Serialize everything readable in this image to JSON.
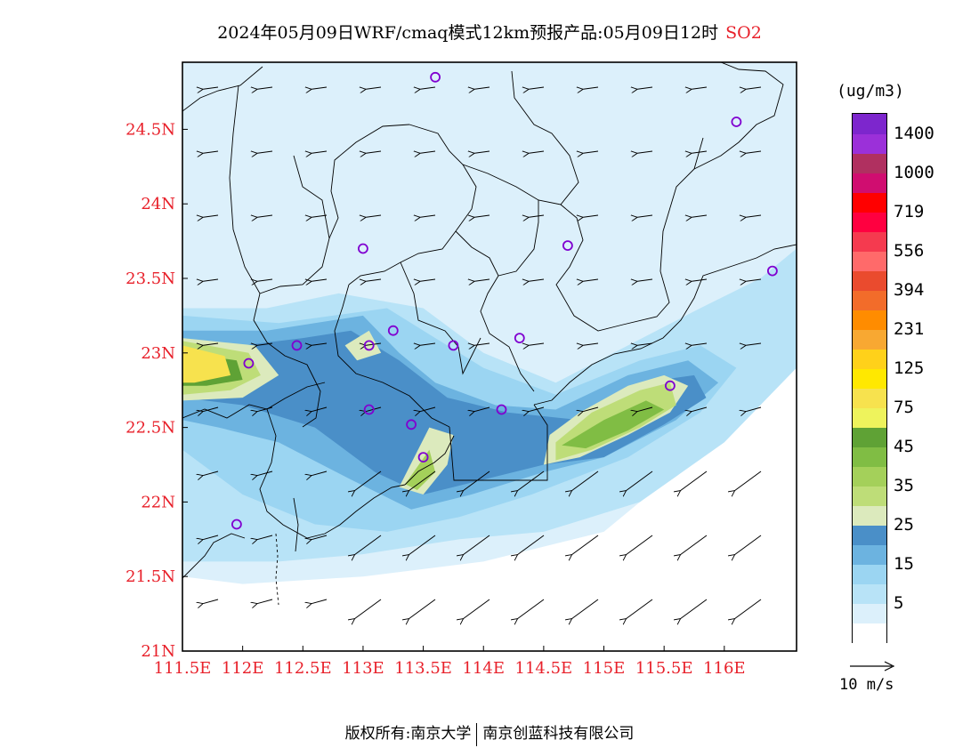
{
  "header": {
    "title": "2024年05月09日WRF/cmaq模式12km预报产品:05月09日12时",
    "pollutant": "SO2"
  },
  "legend": {
    "unit": "(ug/m3)",
    "levels": [
      {
        "label": "",
        "color": "#ffffff"
      },
      {
        "label": "5",
        "color": "#dcf0fb"
      },
      {
        "label": "",
        "color": "#b8e3f7"
      },
      {
        "label": "15",
        "color": "#9bd5f2"
      },
      {
        "label": "",
        "color": "#6cb3e0"
      },
      {
        "label": "25",
        "color": "#4a8fc8"
      },
      {
        "label": "",
        "color": "#dceabd"
      },
      {
        "label": "35",
        "color": "#bedd78"
      },
      {
        "label": "",
        "color": "#a4d05a"
      },
      {
        "label": "45",
        "color": "#80bd44"
      },
      {
        "label": "",
        "color": "#5fa235"
      },
      {
        "label": "75",
        "color": "#eef35c"
      },
      {
        "label": "",
        "color": "#f7e24e"
      },
      {
        "label": "125",
        "color": "#ffe800"
      },
      {
        "label": "",
        "color": "#ffd11a"
      },
      {
        "label": "231",
        "color": "#f8a832"
      },
      {
        "label": "",
        "color": "#ff8c00"
      },
      {
        "label": "394",
        "color": "#f26c2a"
      },
      {
        "label": "",
        "color": "#ea4b2e"
      },
      {
        "label": "556",
        "color": "#ff6a6a"
      },
      {
        "label": "",
        "color": "#f53a4f"
      },
      {
        "label": "719",
        "color": "#ff0040"
      },
      {
        "label": "",
        "color": "#ff0000"
      },
      {
        "label": "1000",
        "color": "#d00d70"
      },
      {
        "label": "",
        "color": "#b03060"
      },
      {
        "label": "1400",
        "color": "#9b30d9"
      },
      {
        "label": "",
        "color": "#7d26cd"
      }
    ]
  },
  "axes": {
    "x_ticks": [
      "111.5E",
      "112E",
      "112.5E",
      "113E",
      "113.5E",
      "114E",
      "114.5E",
      "115E",
      "115.5E",
      "116E"
    ],
    "y_ticks": [
      "21N",
      "21.5N",
      "22N",
      "22.5N",
      "23N",
      "23.5N",
      "24N",
      "24.5N"
    ],
    "lon_range": [
      111.5,
      116.6
    ],
    "lat_range": [
      21.0,
      24.95
    ]
  },
  "vector_key": {
    "label": "10 m/s"
  },
  "footer": {
    "left": "版权所有:南京大学",
    "right": "南京创蓝科技有限公司"
  },
  "colors": {
    "tick_text": "#e8202a",
    "station_marker": "#8000d0",
    "frame": "#000000"
  },
  "field": {
    "bands": [
      {
        "level": 1,
        "pts": [
          [
            111.5,
            24.95
          ],
          [
            111.5,
            21.5
          ],
          [
            112,
            21.45
          ],
          [
            113,
            21.5
          ],
          [
            114,
            21.6
          ],
          [
            115,
            21.8
          ],
          [
            115.6,
            22.2
          ],
          [
            116.1,
            22.6
          ],
          [
            116.6,
            23
          ],
          [
            116.6,
            24.95
          ]
        ]
      },
      {
        "level": 2,
        "pts": [
          [
            111.5,
            23.3
          ],
          [
            112.2,
            23.3
          ],
          [
            112.8,
            23.4
          ],
          [
            113.5,
            23.3
          ],
          [
            114,
            23
          ],
          [
            114.6,
            22.8
          ],
          [
            115.2,
            23.05
          ],
          [
            115.8,
            23.3
          ],
          [
            116.3,
            23.5
          ],
          [
            116.6,
            23.7
          ],
          [
            116.6,
            22.9
          ],
          [
            116,
            22.4
          ],
          [
            115.3,
            22
          ],
          [
            114.5,
            21.8
          ],
          [
            113.8,
            21.75
          ],
          [
            113,
            21.65
          ],
          [
            112.3,
            21.6
          ],
          [
            111.5,
            21.6
          ]
        ]
      },
      {
        "level": 3,
        "pts": [
          [
            111.5,
            23.25
          ],
          [
            112.3,
            23.2
          ],
          [
            113.2,
            23.3
          ],
          [
            113.6,
            23.1
          ],
          [
            114,
            22.9
          ],
          [
            114.6,
            22.72
          ],
          [
            115.3,
            22.95
          ],
          [
            115.8,
            23.05
          ],
          [
            116.1,
            22.9
          ],
          [
            115.8,
            22.6
          ],
          [
            115.2,
            22.3
          ],
          [
            114.4,
            22.05
          ],
          [
            113.8,
            21.9
          ],
          [
            113.2,
            21.8
          ],
          [
            112.6,
            21.85
          ],
          [
            112,
            22.05
          ],
          [
            111.5,
            22.35
          ]
        ]
      },
      {
        "level": 4,
        "pts": [
          [
            111.5,
            23.15
          ],
          [
            112.2,
            23.15
          ],
          [
            112.6,
            23.2
          ],
          [
            113,
            23.25
          ],
          [
            113.3,
            23.0
          ],
          [
            113.6,
            22.8
          ],
          [
            114.1,
            22.65
          ],
          [
            114.6,
            22.62
          ],
          [
            115.2,
            22.85
          ],
          [
            115.7,
            22.95
          ],
          [
            115.95,
            22.8
          ],
          [
            115.6,
            22.55
          ],
          [
            115,
            22.3
          ],
          [
            114.5,
            22.2
          ],
          [
            113.9,
            22.05
          ],
          [
            113.4,
            21.95
          ],
          [
            112.9,
            22.15
          ],
          [
            112.3,
            22.4
          ],
          [
            111.8,
            22.5
          ],
          [
            111.5,
            22.55
          ]
        ]
      },
      {
        "level": 5,
        "pts": [
          [
            111.5,
            23.1
          ],
          [
            112.0,
            23.05
          ],
          [
            112.5,
            23.1
          ],
          [
            112.9,
            23.15
          ],
          [
            113.3,
            22.95
          ],
          [
            113.7,
            22.7
          ],
          [
            114.2,
            22.6
          ],
          [
            114.8,
            22.55
          ],
          [
            115.3,
            22.8
          ],
          [
            115.75,
            22.85
          ],
          [
            115.85,
            22.7
          ],
          [
            115.5,
            22.52
          ],
          [
            115,
            22.3
          ],
          [
            114.5,
            22.25
          ],
          [
            114,
            22.15
          ],
          [
            113.5,
            22.05
          ],
          [
            113.1,
            22.2
          ],
          [
            112.6,
            22.5
          ],
          [
            112,
            22.65
          ],
          [
            111.5,
            22.7
          ]
        ]
      },
      {
        "level": 6,
        "pts": [
          [
            111.5,
            23.1
          ],
          [
            112.1,
            23.05
          ],
          [
            112.3,
            22.85
          ],
          [
            112.0,
            22.7
          ],
          [
            111.5,
            22.68
          ]
        ]
      },
      {
        "level": 6,
        "pts": [
          [
            114.55,
            22.45
          ],
          [
            114.8,
            22.6
          ],
          [
            115.2,
            22.78
          ],
          [
            115.5,
            22.85
          ],
          [
            115.7,
            22.78
          ],
          [
            115.55,
            22.6
          ],
          [
            115.2,
            22.45
          ],
          [
            114.8,
            22.3
          ],
          [
            114.5,
            22.25
          ]
        ]
      },
      {
        "level": 6,
        "pts": [
          [
            113.3,
            22.1
          ],
          [
            113.55,
            22.5
          ],
          [
            113.75,
            22.45
          ],
          [
            113.7,
            22.25
          ],
          [
            113.5,
            22.05
          ]
        ]
      },
      {
        "level": 6,
        "pts": [
          [
            112.85,
            23.05
          ],
          [
            113.05,
            23.15
          ],
          [
            113.15,
            23.0
          ],
          [
            112.95,
            22.95
          ]
        ]
      },
      {
        "level": 7,
        "pts": [
          [
            111.5,
            23.08
          ],
          [
            112.05,
            23.0
          ],
          [
            112.15,
            22.85
          ],
          [
            111.9,
            22.75
          ],
          [
            111.5,
            22.72
          ]
        ]
      },
      {
        "level": 7,
        "pts": [
          [
            114.6,
            22.4
          ],
          [
            114.9,
            22.6
          ],
          [
            115.3,
            22.75
          ],
          [
            115.55,
            22.8
          ],
          [
            115.6,
            22.65
          ],
          [
            115.3,
            22.5
          ],
          [
            114.9,
            22.35
          ],
          [
            114.6,
            22.28
          ]
        ]
      },
      {
        "level": 8,
        "pts": [
          [
            113.35,
            22.12
          ],
          [
            113.55,
            22.35
          ],
          [
            113.6,
            22.2
          ],
          [
            113.45,
            22.08
          ]
        ]
      },
      {
        "level": 9,
        "pts": [
          [
            114.65,
            22.38
          ],
          [
            115.0,
            22.55
          ],
          [
            115.35,
            22.68
          ],
          [
            115.5,
            22.62
          ],
          [
            115.2,
            22.48
          ],
          [
            114.85,
            22.36
          ]
        ]
      },
      {
        "level": 10,
        "pts": [
          [
            111.5,
            23.0
          ],
          [
            111.95,
            22.95
          ],
          [
            112.0,
            22.82
          ],
          [
            111.7,
            22.78
          ],
          [
            111.5,
            22.78
          ]
        ]
      },
      {
        "level": 12,
        "pts": [
          [
            111.5,
            23.05
          ],
          [
            111.85,
            22.98
          ],
          [
            111.9,
            22.85
          ],
          [
            111.6,
            22.8
          ],
          [
            111.5,
            22.8
          ]
        ]
      }
    ],
    "stations": [
      [
        113.6,
        24.85
      ],
      [
        116.1,
        24.55
      ],
      [
        114.7,
        23.72
      ],
      [
        116.4,
        23.55
      ],
      [
        113.0,
        23.7
      ],
      [
        112.45,
        23.05
      ],
      [
        113.05,
        23.05
      ],
      [
        113.25,
        23.15
      ],
      [
        113.75,
        23.05
      ],
      [
        114.3,
        23.1
      ],
      [
        112.05,
        22.93
      ],
      [
        113.05,
        22.62
      ],
      [
        113.4,
        22.52
      ],
      [
        114.15,
        22.62
      ],
      [
        113.5,
        22.3
      ],
      [
        115.55,
        22.78
      ],
      [
        111.95,
        21.85
      ]
    ]
  }
}
